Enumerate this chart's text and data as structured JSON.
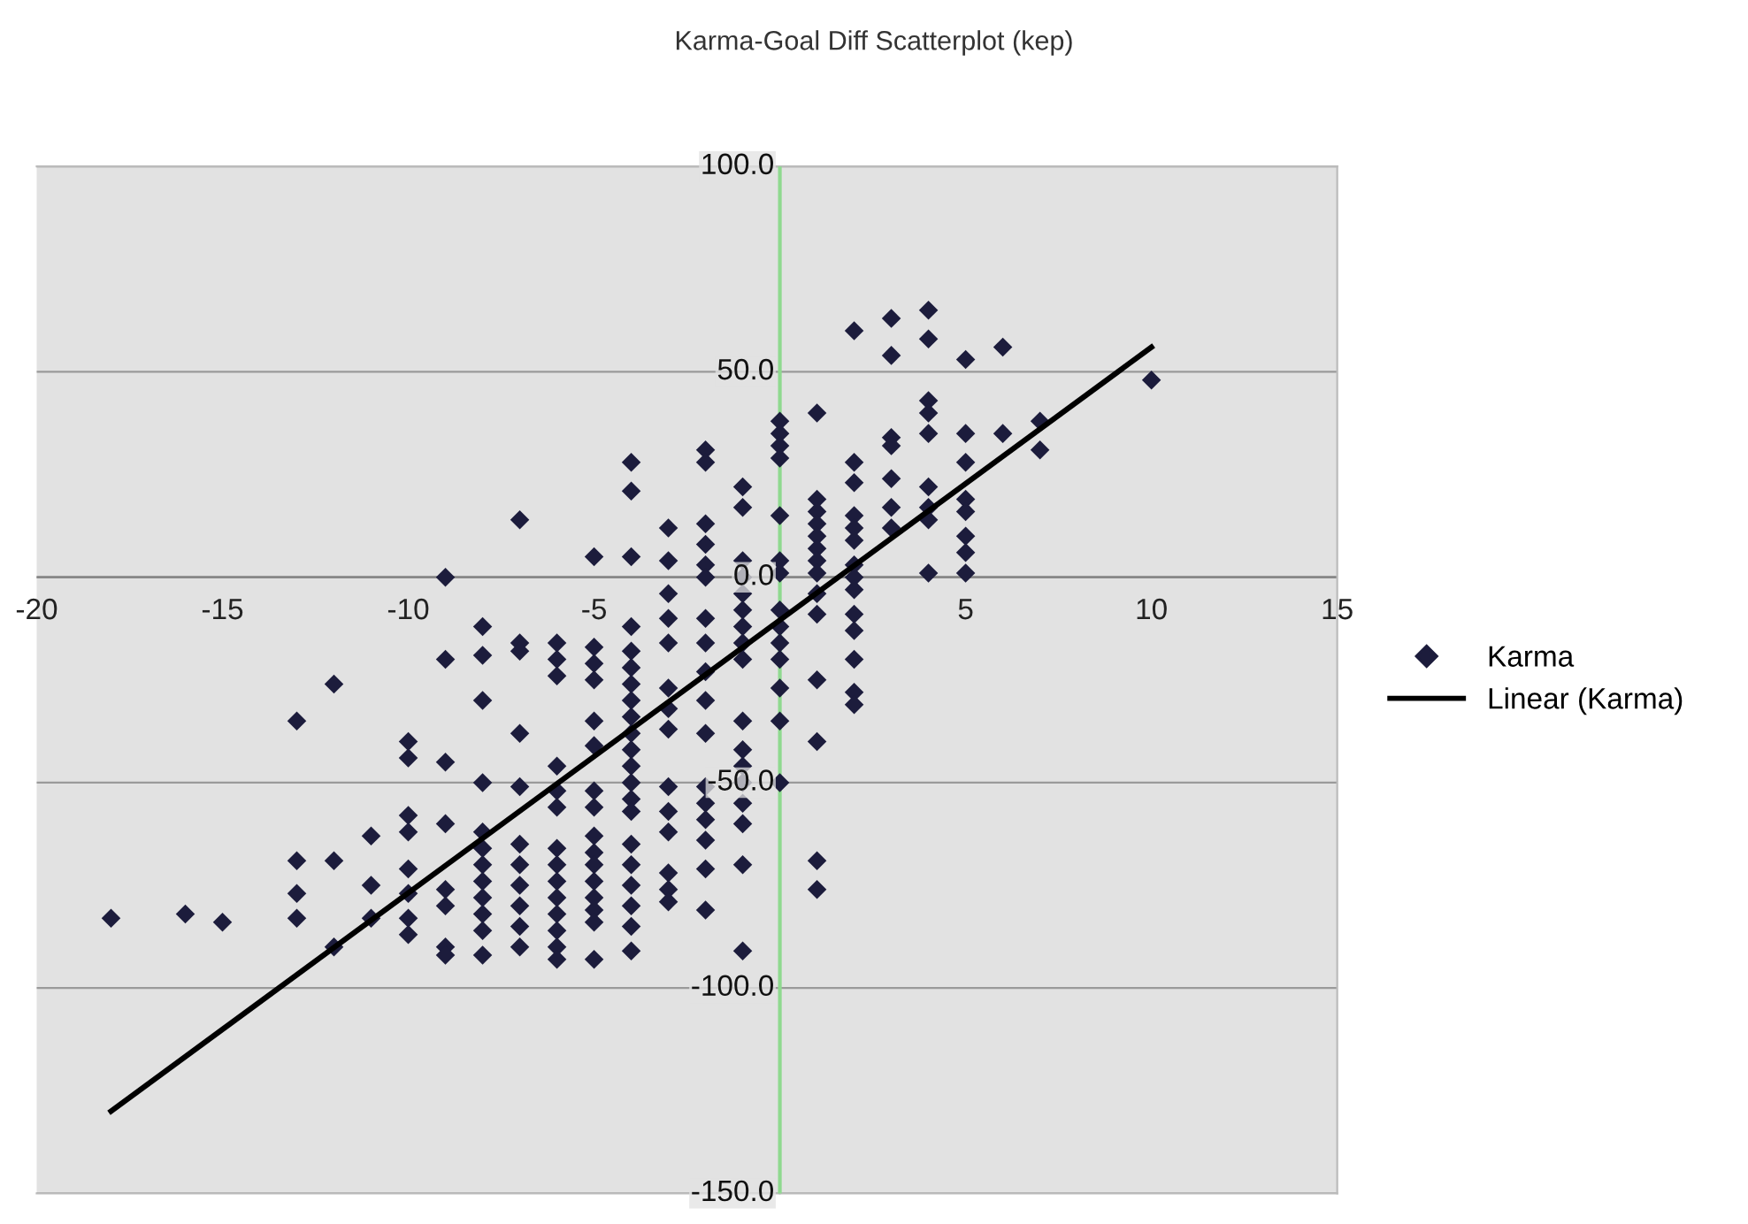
{
  "chart_data": {
    "type": "scatter",
    "title": "Karma-Goal Diff Scatterplot (kep)",
    "xlim": [
      -20,
      15
    ],
    "xticks": [
      -20,
      -15,
      -10,
      -5,
      {
        "value": 0,
        "label": null
      },
      5,
      10,
      15
    ],
    "ylim": [
      -150,
      100
    ],
    "yticks": [
      {
        "value": -150,
        "label": "-150.0"
      },
      {
        "value": -100,
        "label": "-100.0"
      },
      {
        "value": -50,
        "label": "-50.0"
      },
      {
        "value": 0,
        "label": "0.0"
      },
      {
        "value": 50,
        "label": "50.0"
      },
      {
        "value": 100,
        "label": "100.0"
      }
    ],
    "grid": "y",
    "legend": "right",
    "marker": "diamond",
    "ref_lines": [
      {
        "axis": "x",
        "value": 0,
        "label": null,
        "color": "#8fd98f"
      }
    ],
    "series": [
      {
        "name": "Karma",
        "color": "#1c1c3c",
        "x": [
          -18,
          -16,
          -15,
          -13,
          -13,
          -13,
          -13,
          -12,
          -12,
          -12,
          -11,
          -11,
          -11,
          -10,
          -10,
          -10,
          -10,
          -10,
          -10,
          -10,
          -10,
          -9,
          -9,
          -9,
          -9,
          -9,
          -9,
          -9,
          -9,
          -8,
          -8,
          -8,
          -8,
          -8,
          -8,
          -8,
          -8,
          -8,
          -8,
          -8,
          -8,
          -7,
          -7,
          -7,
          -7,
          -7,
          -7,
          -7,
          -7,
          -7,
          -7,
          -7,
          -6,
          -6,
          -6,
          -6,
          -6,
          -6,
          -6,
          -6,
          -6,
          -6,
          -6,
          -6,
          -6,
          -6,
          -5,
          -5,
          -5,
          -5,
          -5,
          -5,
          -5,
          -5,
          -5,
          -5,
          -5,
          -5,
          -5,
          -5,
          -5,
          -5,
          -4,
          -4,
          -4,
          -4,
          -4,
          -4,
          -4,
          -4,
          -4,
          -4,
          -4,
          -4,
          -4,
          -4,
          -4,
          -4,
          -4,
          -4,
          -4,
          -4,
          -4,
          -3,
          -3,
          -3,
          -3,
          -3,
          -3,
          -3,
          -3,
          -3,
          -3,
          -3,
          -3,
          -3,
          -3,
          -2,
          -2,
          -2,
          -2,
          -2,
          -2,
          -2,
          -2,
          -2,
          -2,
          -2,
          -2,
          -2,
          -2,
          -2,
          -2,
          -2,
          -1,
          -1,
          -1,
          -1,
          -1,
          -1,
          -1,
          -1,
          -1,
          -1,
          -1,
          -1,
          -1,
          -1,
          -1,
          -1,
          -1,
          0,
          0,
          0,
          0,
          0,
          0,
          0,
          0,
          0,
          0,
          0,
          0,
          0,
          0,
          1,
          1,
          1,
          1,
          1,
          1,
          1,
          1,
          1,
          1,
          1,
          1,
          1,
          1,
          2,
          2,
          2,
          2,
          2,
          2,
          2,
          2,
          2,
          2,
          2,
          2,
          2,
          2,
          3,
          3,
          3,
          3,
          3,
          3,
          3,
          4,
          4,
          4,
          4,
          4,
          4,
          4,
          4,
          4,
          5,
          5,
          5,
          5,
          5,
          5,
          5,
          5,
          6,
          6,
          7,
          7,
          10
        ],
        "values": [
          -83,
          -82,
          -84,
          -35,
          -69,
          -77,
          -83,
          -26,
          -69,
          -90,
          -63,
          -75,
          -83,
          -40,
          -44,
          -58,
          -62,
          -71,
          -77,
          -83,
          -87,
          0,
          -20,
          -45,
          -60,
          -76,
          -80,
          -90,
          -92,
          -12,
          -19,
          -30,
          -50,
          -62,
          -66,
          -70,
          -74,
          -78,
          -82,
          -86,
          -92,
          14,
          -16,
          -18,
          -38,
          -51,
          -65,
          -70,
          -75,
          -80,
          -85,
          -90,
          -16,
          -20,
          -24,
          -46,
          -52,
          -56,
          -66,
          -70,
          -74,
          -78,
          -82,
          -86,
          -90,
          -93,
          5,
          -17,
          -21,
          -25,
          -35,
          -41,
          -52,
          -56,
          -63,
          -67,
          -70,
          -74,
          -78,
          -81,
          -84,
          -93,
          28,
          21,
          5,
          -12,
          -18,
          -22,
          -26,
          -30,
          -34,
          -38,
          -42,
          -46,
          -50,
          -54,
          -57,
          -65,
          -70,
          -75,
          -80,
          -85,
          -91,
          12,
          4,
          -4,
          -10,
          -16,
          -27,
          -32,
          -37,
          -51,
          -57,
          -62,
          -72,
          -76,
          -79,
          31,
          28,
          13,
          8,
          3,
          0,
          -10,
          -16,
          -23,
          -30,
          -38,
          -51,
          -55,
          -59,
          -64,
          -71,
          -81,
          22,
          17,
          4,
          0,
          -4,
          -8,
          -12,
          -16,
          -20,
          -35,
          -42,
          -46,
          -50,
          -55,
          -60,
          -70,
          -91,
          38,
          35,
          32,
          29,
          15,
          4,
          1,
          -8,
          -12,
          -16,
          -20,
          -27,
          -35,
          -50,
          40,
          19,
          16,
          13,
          10,
          7,
          4,
          1,
          -4,
          -9,
          -25,
          -40,
          -69,
          -76,
          60,
          28,
          23,
          15,
          12,
          9,
          3,
          0,
          -3,
          -9,
          -13,
          -20,
          -28,
          -31,
          63,
          54,
          34,
          32,
          24,
          17,
          12,
          65,
          58,
          43,
          40,
          35,
          22,
          17,
          14,
          1,
          53,
          35,
          28,
          19,
          16,
          10,
          6,
          1,
          56,
          35,
          38,
          31,
          48
        ]
      },
      {
        "name": "Linear (Karma)",
        "type": "line",
        "color": "#000000",
        "marker": "none",
        "line_style": "solid",
        "x": [
          -18,
          10
        ],
        "values": [
          -130,
          56
        ]
      }
    ]
  }
}
